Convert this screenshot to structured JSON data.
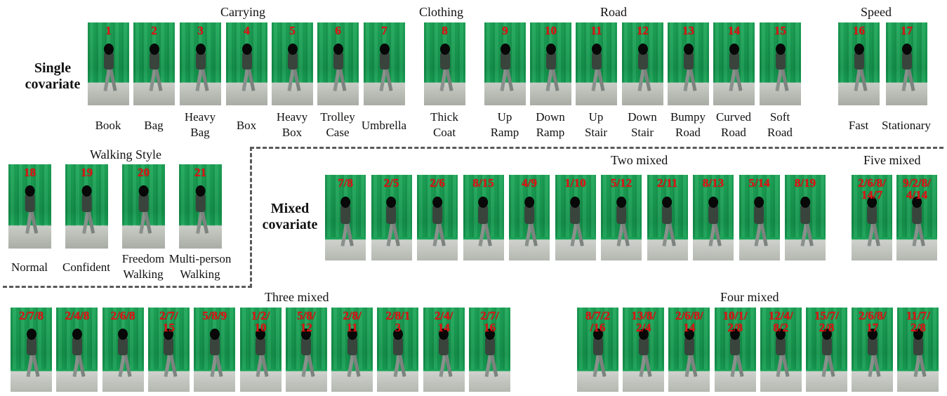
{
  "headers": {
    "carrying": "Carrying",
    "clothing": "Clothing",
    "road": "Road",
    "speed": "Speed",
    "walking_style": "Walking Style",
    "two_mixed": "Two mixed",
    "five_mixed": "Five mixed",
    "three_mixed": "Three mixed",
    "four_mixed": "Four mixed"
  },
  "side_labels": {
    "single": "Single\ncovariate",
    "mixed": "Mixed\ncovariate"
  },
  "single_items": [
    {
      "id": "1",
      "label": "Book"
    },
    {
      "id": "2",
      "label": "Bag"
    },
    {
      "id": "3",
      "label": "Heavy\nBag"
    },
    {
      "id": "4",
      "label": "Box"
    },
    {
      "id": "5",
      "label": "Heavy\nBox"
    },
    {
      "id": "6",
      "label": "Trolley\nCase"
    },
    {
      "id": "7",
      "label": "Umbrella"
    },
    {
      "id": "8",
      "label": "Thick\nCoat"
    },
    {
      "id": "9",
      "label": "Up\nRamp"
    },
    {
      "id": "10",
      "label": "Down\nRamp"
    },
    {
      "id": "11",
      "label": "Up\nStair"
    },
    {
      "id": "12",
      "label": "Down\nStair"
    },
    {
      "id": "13",
      "label": "Bumpy\nRoad"
    },
    {
      "id": "14",
      "label": "Curved\nRoad"
    },
    {
      "id": "15",
      "label": "Soft\nRoad"
    },
    {
      "id": "16",
      "label": "Fast"
    },
    {
      "id": "17",
      "label": "Stationary"
    }
  ],
  "walking_items": [
    {
      "id": "18",
      "label": "Normal"
    },
    {
      "id": "19",
      "label": "Confident"
    },
    {
      "id": "20",
      "label": "Freedom\nWalking"
    },
    {
      "id": "21",
      "label": "Multi-person\nWalking"
    }
  ],
  "two_mixed": [
    "7/8",
    "2/5",
    "2/6",
    "8/15",
    "4/9",
    "1/10",
    "5/12",
    "2/11",
    "8/13",
    "5/14",
    "8/19"
  ],
  "five_mixed": [
    "2/6/8/\n14/7",
    "9/2/8/\n4/14"
  ],
  "three_mixed": [
    "2/7/8",
    "2/4/8",
    "2/6/8",
    "2/7/\n15",
    "5/8/9",
    "1/2/\n10",
    "5/8/\n12",
    "2/8/\n11",
    "2/8/1\n3",
    "2/4/\n14",
    "2/7/\n16"
  ],
  "four_mixed": [
    "8/7/2\n/16",
    "13/8/\n2/4",
    "2/6/8/\n14",
    "10/1/\n2/8",
    "12/4/\n8/2",
    "15/7/\n2/8",
    "2/6/8/\n17",
    "11/7/\n2/8"
  ],
  "colors": {
    "backdrop": "#1fa85a",
    "number": "#e01414",
    "dash": "#5a5a5a"
  }
}
